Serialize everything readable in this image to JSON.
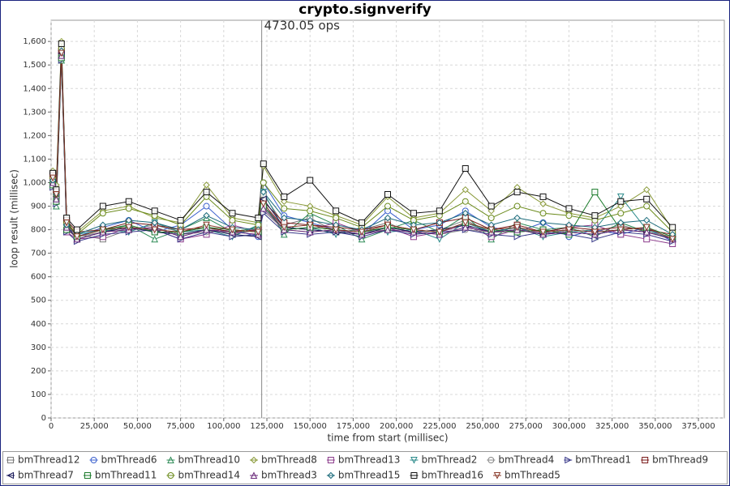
{
  "chart_data": {
    "type": "line",
    "title": "crypto.signverify",
    "x_label": "time from start (millisec)",
    "y_label": "loop result (millisec)",
    "annotation": {
      "text": "4730.05 ops",
      "x": 122000
    },
    "xlim": [
      0,
      390000
    ],
    "ylim": [
      0,
      1690
    ],
    "grid": true,
    "xticks": [
      0,
      {
        "value": 25000,
        "label": "25,000"
      },
      {
        "value": 50000,
        "label": "50,000"
      },
      {
        "value": 75000,
        "label": "75,000"
      },
      {
        "value": 100000,
        "label": "100,000"
      },
      {
        "value": 125000,
        "label": "125,000"
      },
      {
        "value": 150000,
        "label": "150,000"
      },
      {
        "value": 175000,
        "label": "175,000"
      },
      {
        "value": 200000,
        "label": "200,000"
      },
      {
        "value": 225000,
        "label": "225,000"
      },
      {
        "value": 250000,
        "label": "250,000"
      },
      {
        "value": 275000,
        "label": "275,000"
      },
      {
        "value": 300000,
        "label": "300,000"
      },
      {
        "value": 325000,
        "label": "325,000"
      },
      {
        "value": 350000,
        "label": "350,000"
      },
      {
        "value": 375000,
        "label": "375,000"
      }
    ],
    "yticks": [
      0,
      100,
      200,
      300,
      400,
      500,
      600,
      700,
      800,
      900,
      {
        "value": 1000,
        "label": "1,000"
      },
      {
        "value": 1100,
        "label": "1,100"
      },
      {
        "value": 1200,
        "label": "1,200"
      },
      {
        "value": 1300,
        "label": "1,300"
      },
      {
        "value": 1400,
        "label": "1,400"
      },
      {
        "value": 1500,
        "label": "1,500"
      },
      {
        "value": 1600,
        "label": "1,600"
      }
    ],
    "x": [
      1000,
      3000,
      6000,
      9000,
      15000,
      30000,
      45000,
      60000,
      75000,
      90000,
      105000,
      120000,
      123000,
      135000,
      150000,
      165000,
      180000,
      195000,
      210000,
      225000,
      240000,
      255000,
      270000,
      285000,
      300000,
      315000,
      330000,
      345000,
      360000
    ],
    "series": [
      {
        "name": "bmThread12",
        "color": "#7a7a7a",
        "marker": "square",
        "values": [
          1040,
          960,
          1540,
          830,
          780,
          760,
          800,
          820,
          790,
          810,
          780,
          800,
          950,
          820,
          850,
          790,
          800,
          830,
          780,
          800,
          840,
          790,
          810,
          780,
          800,
          790,
          820,
          790,
          760
        ]
      },
      {
        "name": "bmThread6",
        "color": "#3a5fcd",
        "marker": "circle",
        "values": [
          1000,
          930,
          1560,
          800,
          770,
          810,
          840,
          790,
          820,
          900,
          800,
          770,
          1000,
          860,
          830,
          800,
          780,
          880,
          800,
          820,
          880,
          810,
          790,
          830,
          770,
          800,
          780,
          810,
          750
        ]
      },
      {
        "name": "bmThread10",
        "color": "#2e8b57",
        "marker": "triangle-up",
        "values": [
          1010,
          900,
          1520,
          850,
          760,
          790,
          820,
          760,
          800,
          850,
          790,
          810,
          920,
          780,
          870,
          820,
          760,
          800,
          840,
          790,
          860,
          760,
          830,
          800,
          810,
          770,
          830,
          790,
          770
        ]
      },
      {
        "name": "bmThread8",
        "color": "#8a9a3a",
        "marker": "diamond",
        "values": [
          1050,
          990,
          1600,
          820,
          790,
          880,
          900,
          850,
          830,
          990,
          850,
          830,
          1070,
          920,
          900,
          860,
          820,
          940,
          850,
          870,
          970,
          880,
          980,
          910,
          870,
          850,
          900,
          970,
          800
        ]
      },
      {
        "name": "bmThread13",
        "color": "#8b3a8b",
        "marker": "square",
        "values": [
          1020,
          950,
          1550,
          790,
          760,
          770,
          810,
          800,
          760,
          780,
          820,
          790,
          900,
          810,
          800,
          830,
          790,
          810,
          770,
          790,
          820,
          770,
          800,
          790,
          810,
          820,
          780,
          760,
          740
        ]
      },
      {
        "name": "bmThread2",
        "color": "#2a8a8a",
        "marker": "triangle-down",
        "values": [
          990,
          920,
          1530,
          810,
          780,
          800,
          790,
          830,
          790,
          800,
          770,
          820,
          960,
          800,
          810,
          780,
          810,
          790,
          800,
          760,
          830,
          790,
          810,
          770,
          790,
          800,
          940,
          800,
          760
        ]
      },
      {
        "name": "bmThread4",
        "color": "#888888",
        "marker": "circle",
        "values": [
          1000,
          940,
          1540,
          800,
          770,
          790,
          800,
          810,
          780,
          790,
          800,
          790,
          880,
          800,
          790,
          800,
          790,
          800,
          790,
          780,
          800,
          790,
          790,
          800,
          790,
          780,
          800,
          790,
          770
        ]
      },
      {
        "name": "bmThread1",
        "color": "#3a3a8a",
        "marker": "triangle-right",
        "values": [
          980,
          910,
          1520,
          790,
          750,
          780,
          790,
          800,
          760,
          790,
          770,
          780,
          870,
          790,
          780,
          790,
          770,
          800,
          780,
          790,
          800,
          780,
          770,
          790,
          780,
          760,
          790,
          780,
          750
        ]
      },
      {
        "name": "bmThread9",
        "color": "#7a1a1a",
        "marker": "square",
        "values": [
          1030,
          960,
          1560,
          840,
          790,
          800,
          830,
          820,
          800,
          810,
          790,
          800,
          920,
          830,
          820,
          810,
          800,
          820,
          800,
          830,
          850,
          800,
          820,
          790,
          810,
          800,
          810,
          800,
          780
        ]
      },
      {
        "name": "bmThread7",
        "color": "#1a1a5a",
        "marker": "triangle-left",
        "values": [
          1010,
          940,
          1550,
          820,
          760,
          790,
          810,
          790,
          780,
          800,
          780,
          770,
          930,
          810,
          800,
          790,
          780,
          810,
          790,
          800,
          820,
          790,
          800,
          780,
          790,
          780,
          800,
          790,
          760
        ]
      },
      {
        "name": "bmThread11",
        "color": "#1a7a2a",
        "marker": "square",
        "values": [
          990,
          920,
          1530,
          800,
          770,
          800,
          820,
          790,
          790,
          810,
          800,
          790,
          900,
          800,
          810,
          800,
          790,
          810,
          800,
          790,
          830,
          800,
          790,
          800,
          780,
          960,
          800,
          810,
          770
        ]
      },
      {
        "name": "bmThread14",
        "color": "#6a8a1a",
        "marker": "circle",
        "values": [
          1020,
          950,
          1570,
          830,
          780,
          870,
          890,
          860,
          820,
          940,
          840,
          820,
          1000,
          890,
          880,
          850,
          810,
          900,
          840,
          860,
          920,
          850,
          900,
          870,
          860,
          840,
          870,
          900,
          790
        ]
      },
      {
        "name": "bmThread3",
        "color": "#6a2a7a",
        "marker": "triangle-up",
        "values": [
          1000,
          930,
          1540,
          810,
          760,
          790,
          800,
          810,
          770,
          800,
          790,
          780,
          890,
          800,
          790,
          800,
          780,
          800,
          790,
          780,
          810,
          790,
          800,
          780,
          790,
          780,
          800,
          790,
          760
        ]
      },
      {
        "name": "bmThread15",
        "color": "#1a6a7a",
        "marker": "diamond",
        "values": [
          1010,
          950,
          1560,
          820,
          780,
          820,
          840,
          830,
          800,
          860,
          810,
          800,
          960,
          850,
          840,
          820,
          800,
          850,
          820,
          830,
          870,
          820,
          850,
          830,
          820,
          810,
          830,
          840,
          780
        ]
      },
      {
        "name": "bmThread16",
        "color": "#111111",
        "marker": "square",
        "values": [
          1040,
          970,
          1590,
          850,
          800,
          900,
          920,
          880,
          840,
          960,
          870,
          850,
          1080,
          940,
          1010,
          880,
          830,
          950,
          870,
          880,
          1060,
          900,
          960,
          940,
          890,
          860,
          920,
          930,
          810
        ]
      },
      {
        "name": "bmThread5",
        "color": "#8a3a2a",
        "marker": "triangle-down",
        "values": [
          1020,
          950,
          1550,
          830,
          770,
          800,
          810,
          800,
          790,
          820,
          800,
          790,
          910,
          810,
          820,
          800,
          790,
          820,
          800,
          790,
          830,
          800,
          810,
          790,
          800,
          790,
          800,
          810,
          760
        ]
      }
    ]
  }
}
